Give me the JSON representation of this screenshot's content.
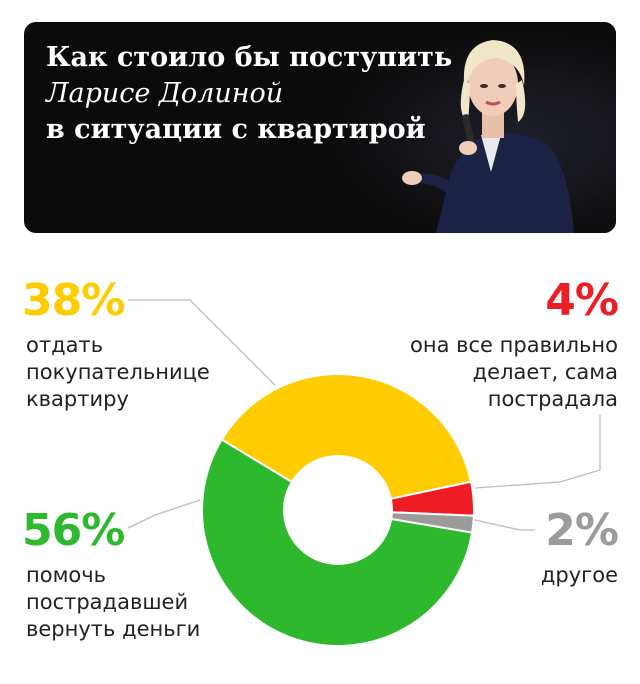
{
  "header": {
    "title_line1": "Как стоило бы поступить",
    "title_line2": "Ларисе Долиной",
    "title_line3": "в ситуации с квартирой"
  },
  "chart_data": {
    "type": "pie",
    "donut": true,
    "slices": [
      {
        "percent_label": "38%",
        "value": 38,
        "color": "#FFCC00",
        "label_lines": [
          "отдать",
          "покупательнице",
          "квартиру"
        ]
      },
      {
        "percent_label": "4%",
        "value": 4,
        "color": "#EE1C25",
        "label_lines": [
          "она все правильно",
          "делает, сама",
          "пострадала"
        ]
      },
      {
        "percent_label": "2%",
        "value": 2,
        "color": "#9B9B9B",
        "label_lines": [
          "другое"
        ]
      },
      {
        "percent_label": "56%",
        "value": 56,
        "color": "#2EB82E",
        "label_lines": [
          "помочь",
          "пострадавшей",
          "вернуть деньги"
        ]
      }
    ]
  }
}
